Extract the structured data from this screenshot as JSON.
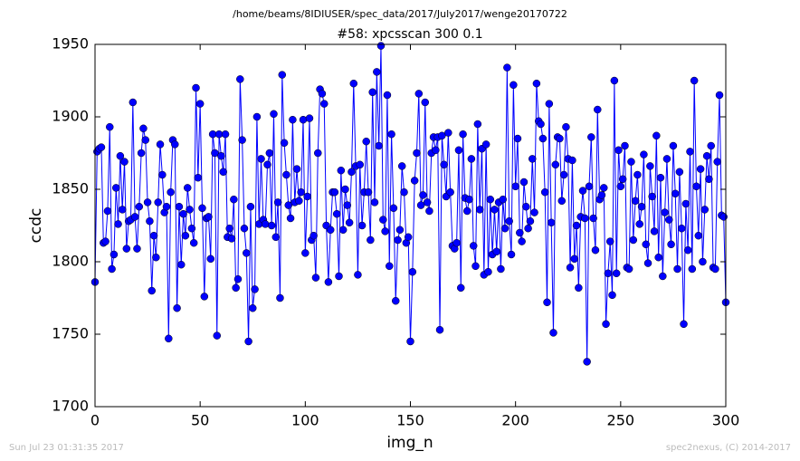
{
  "chart_data": {
    "type": "line",
    "header": "/home/beams/8IDIUSER/spec_data/2017/July2017/wenge20170722",
    "title": "#58: xpcsscan 300 0.1",
    "x_label": "img_n",
    "y_label": "ccdc",
    "footer_left": "Sun Jul 23 01:31:35 2017",
    "footer_right": "spec2nexus, (C) 2014-2017",
    "xlim": [
      0,
      300
    ],
    "xticks": [
      0,
      50,
      100,
      150,
      200,
      250,
      300
    ],
    "ylim": [
      1700,
      1950
    ],
    "yticks": [
      1700,
      1750,
      1800,
      1850,
      1900,
      1950
    ],
    "grid": false,
    "series": [
      {
        "color": "#0000ff",
        "values": [
          1786,
          1876,
          1878,
          1879,
          1813,
          1814,
          1835,
          1893,
          1795,
          1805,
          1851,
          1826,
          1873,
          1836,
          1869,
          1809,
          1828,
          1829,
          1910,
          1831,
          1809,
          1838,
          1875,
          1892,
          1884,
          1841,
          1828,
          1780,
          1818,
          1803,
          1841,
          1881,
          1860,
          1834,
          1838,
          1747,
          1848,
          1884,
          1881,
          1768,
          1838,
          1798,
          1833,
          1818,
          1851,
          1836,
          1823,
          1813,
          1920,
          1858,
          1909,
          1837,
          1776,
          1830,
          1831,
          1802,
          1888,
          1875,
          1749,
          1888,
          1873,
          1862,
          1888,
          1817,
          1823,
          1816,
          1843,
          1782,
          1788,
          1926,
          1884,
          1823,
          1806,
          1745,
          1838,
          1768,
          1781,
          1900,
          1826,
          1871,
          1829,
          1826,
          1867,
          1875,
          1825,
          1902,
          1817,
          1841,
          1775,
          1929,
          1882,
          1860,
          1839,
          1830,
          1898,
          1841,
          1864,
          1842,
          1848,
          1898,
          1806,
          1845,
          1899,
          1815,
          1818,
          1789,
          1875,
          1919,
          1916,
          1909,
          1825,
          1786,
          1822,
          1848,
          1848,
          1833,
          1790,
          1863,
          1822,
          1850,
          1839,
          1827,
          1862,
          1923,
          1866,
          1791,
          1867,
          1825,
          1848,
          1883,
          1848,
          1815,
          1917,
          1841,
          1931,
          1880,
          1949,
          1829,
          1821,
          1915,
          1797,
          1888,
          1837,
          1773,
          1815,
          1822,
          1866,
          1848,
          1813,
          1817,
          1745,
          1793,
          1856,
          1875,
          1916,
          1839,
          1846,
          1910,
          1841,
          1835,
          1875,
          1886,
          1877,
          1886,
          1753,
          1887,
          1867,
          1845,
          1889,
          1848,
          1811,
          1809,
          1813,
          1877,
          1782,
          1888,
          1844,
          1835,
          1843,
          1871,
          1811,
          1797,
          1895,
          1836,
          1878,
          1791,
          1881,
          1793,
          1843,
          1805,
          1836,
          1807,
          1841,
          1795,
          1843,
          1823,
          1934,
          1828,
          1805,
          1922,
          1852,
          1885,
          1820,
          1814,
          1855,
          1838,
          1823,
          1828,
          1871,
          1834,
          1923,
          1897,
          1895,
          1885,
          1848,
          1772,
          1909,
          1827,
          1751,
          1867,
          1886,
          1885,
          1842,
          1860,
          1893,
          1871,
          1796,
          1870,
          1802,
          1825,
          1782,
          1831,
          1849,
          1830,
          1731,
          1852,
          1886,
          1830,
          1808,
          1905,
          1843,
          1846,
          1851,
          1757,
          1792,
          1814,
          1777,
          1925,
          1792,
          1877,
          1852,
          1857,
          1880,
          1796,
          1795,
          1869,
          1815,
          1842,
          1860,
          1826,
          1838,
          1874,
          1812,
          1799,
          1866,
          1845,
          1821,
          1887,
          1803,
          1858,
          1790,
          1834,
          1871,
          1829,
          1812,
          1880,
          1847,
          1795,
          1862,
          1823,
          1757,
          1840,
          1808,
          1876,
          1795,
          1925,
          1852,
          1818,
          1864,
          1800,
          1836,
          1873,
          1857,
          1880,
          1796,
          1795,
          1869,
          1915,
          1832,
          1831,
          1772
        ]
      }
    ]
  }
}
